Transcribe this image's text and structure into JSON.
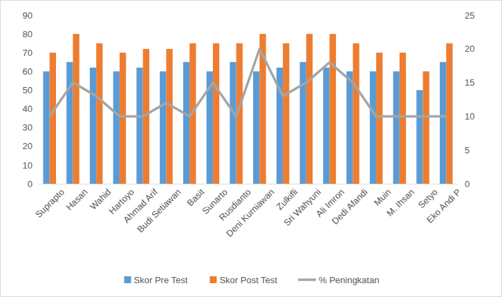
{
  "chart_data": {
    "type": "bar",
    "categories": [
      "Suprapto",
      "Hasan",
      "Wahid",
      "Hartoyo",
      "Ahmad Arif",
      "Budi Setiawan",
      "Basit",
      "Sunarto",
      "Rusdianto",
      "Deni Kurniawan",
      "Zulkifli",
      "Sri Wahyuni",
      "Ali Imron",
      "Dedi Afandi",
      "Muin",
      "M. Ihsan",
      "Setyo",
      "Eko Andi P"
    ],
    "series": [
      {
        "name": "Skor Pre Test",
        "type": "bar",
        "color": "#5b9bd5",
        "values": [
          60,
          65,
          62,
          60,
          62,
          60,
          65,
          60,
          65,
          60,
          62,
          65,
          62,
          60,
          60,
          60,
          50,
          65
        ]
      },
      {
        "name": "Skor Post Test",
        "type": "bar",
        "color": "#ed7d31",
        "values": [
          70,
          80,
          75,
          70,
          72,
          72,
          75,
          75,
          75,
          80,
          75,
          80,
          80,
          75,
          70,
          70,
          60,
          75
        ]
      },
      {
        "name": "% Peningkatan",
        "type": "line",
        "axis": "y2",
        "color": "#a5a5a5",
        "marker": "none",
        "line_style": "solid",
        "values": [
          10,
          15,
          13,
          10,
          10,
          12,
          10,
          15,
          10,
          20,
          13,
          15,
          18,
          15,
          10,
          10,
          10,
          10
        ]
      }
    ],
    "ylim": [
      0,
      90
    ],
    "yticks": [
      0,
      10,
      20,
      30,
      40,
      50,
      60,
      70,
      80,
      90
    ],
    "y2lim": [
      0,
      25
    ],
    "y2ticks": [
      0,
      5,
      10,
      15,
      20,
      25
    ],
    "grid": false,
    "legend": "bottom"
  }
}
